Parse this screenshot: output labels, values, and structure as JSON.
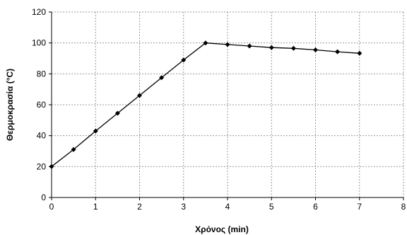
{
  "chart_data": {
    "type": "line",
    "title": "",
    "xlabel": "Χρόνος (min)",
    "ylabel": "Θερμοκρασία (°C)",
    "xlim": [
      0,
      8
    ],
    "ylim": [
      0,
      120
    ],
    "x_ticks": [
      0,
      1,
      2,
      3,
      4,
      5,
      6,
      7,
      8
    ],
    "y_ticks": [
      0,
      20,
      40,
      60,
      80,
      100,
      120
    ],
    "grid": true,
    "legend": "none",
    "series": [
      {
        "color": "#000000",
        "marker": "diamond",
        "x": [
          0,
          0.5,
          1,
          1.5,
          2,
          2.5,
          3,
          3.5,
          4,
          4.5,
          5,
          5.5,
          6,
          6.5,
          7
        ],
        "y": [
          20,
          31,
          43,
          54.5,
          66,
          77.5,
          89,
          100,
          99,
          98,
          97,
          96.5,
          95.5,
          94.3,
          93.3
        ]
      }
    ]
  }
}
